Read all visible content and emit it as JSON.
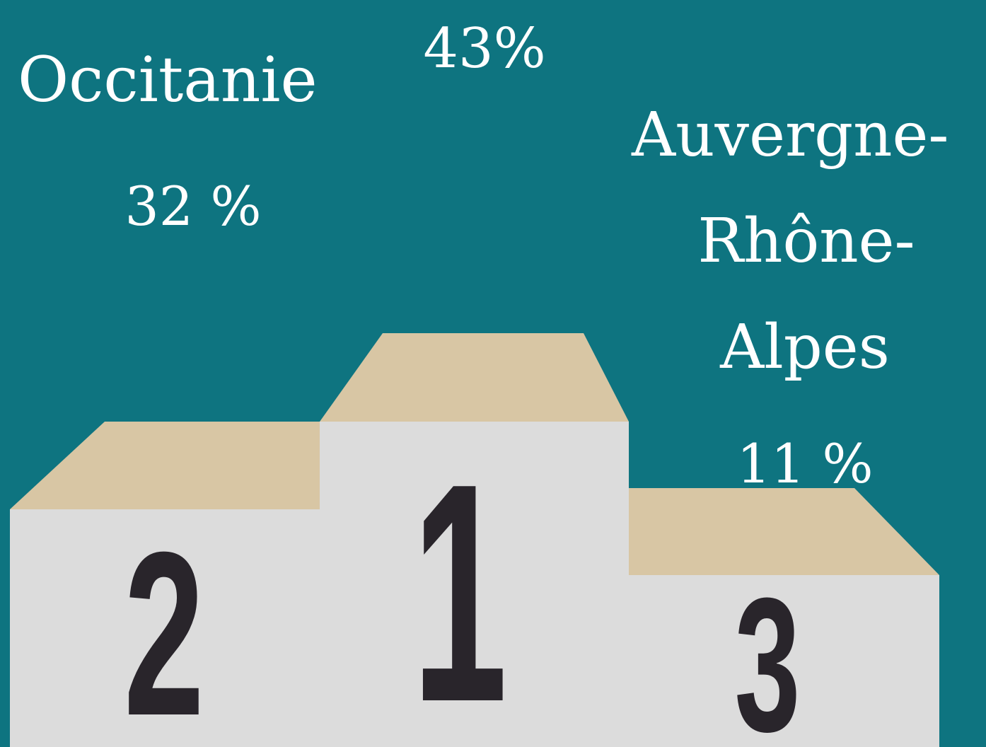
{
  "podium": [
    {
      "rank": "2",
      "region": [
        "Occitanie"
      ],
      "share": "32 %"
    },
    {
      "rank": "1",
      "share": "43%"
    },
    {
      "rank": "3",
      "region": [
        "Auvergne-",
        "Rhône-",
        "Alpes"
      ],
      "share": "11 %"
    }
  ]
}
